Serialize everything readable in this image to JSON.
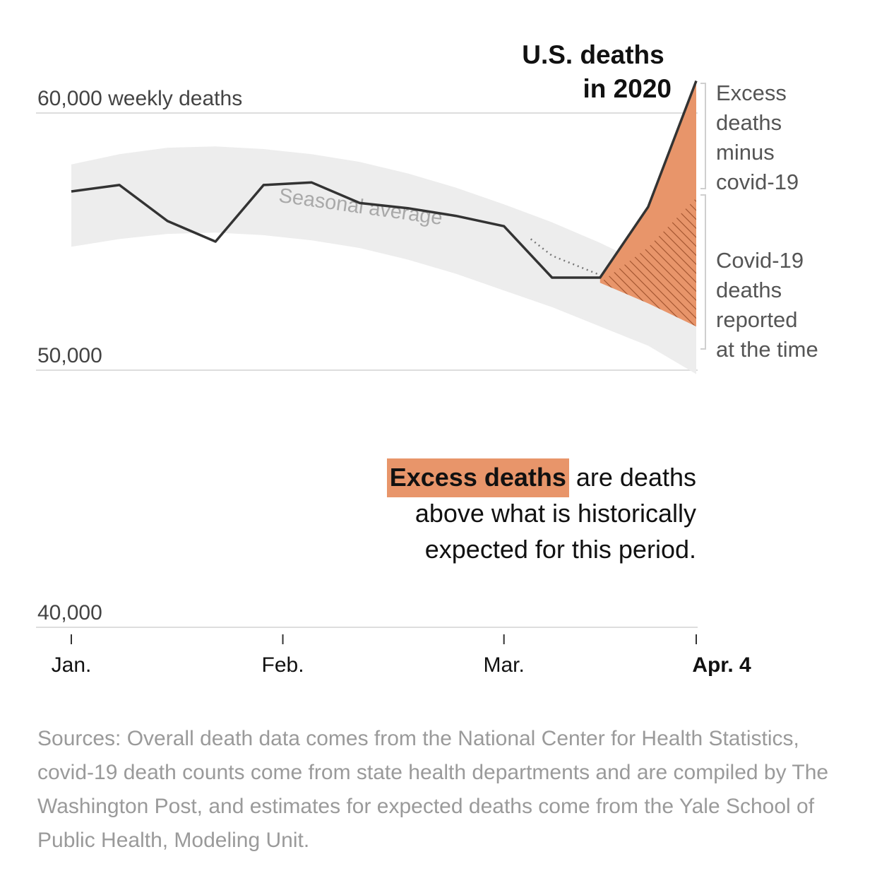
{
  "chart_data": {
    "type": "line",
    "title": "U.S. deaths in 2020",
    "title_lines": [
      "U.S. deaths",
      "in 2020"
    ],
    "ylabel": "weekly deaths",
    "ylim": [
      40000,
      60000
    ],
    "y_ticks": [
      {
        "value": 60000,
        "label": "60,000 weekly deaths"
      },
      {
        "value": 50000,
        "label": "50,000"
      },
      {
        "value": 40000,
        "label": "40,000"
      }
    ],
    "x_ticks": [
      {
        "week": 0,
        "label": "Jan.",
        "bold": false
      },
      {
        "week": 4.4,
        "label": "Feb.",
        "bold": false
      },
      {
        "week": 9.0,
        "label": "Mar.",
        "bold": false
      },
      {
        "week": 13.0,
        "label": "Apr. 4",
        "bold": true
      }
    ],
    "weeks": [
      0,
      1,
      2,
      3,
      4,
      5,
      6,
      7,
      8,
      9,
      10,
      11,
      12,
      13
    ],
    "series": [
      {
        "name": "U.S. deaths in 2020",
        "values": [
          56950,
          57200,
          55800,
          55000,
          57200,
          57300,
          56500,
          56300,
          56000,
          55600,
          53600,
          53600,
          56350,
          61250
        ]
      },
      {
        "name": "Seasonal average",
        "values": [
          56400,
          56700,
          56900,
          56950,
          56800,
          56600,
          56300,
          55900,
          55400,
          54800,
          54150,
          53400,
          52600,
          51700
        ]
      }
    ],
    "seasonal_band": {
      "upper": [
        58000,
        58400,
        58650,
        58700,
        58600,
        58400,
        58100,
        57650,
        57100,
        56450,
        55750,
        54950,
        54050,
        53000
      ],
      "lower": [
        54800,
        55100,
        55300,
        55350,
        55250,
        55050,
        54750,
        54300,
        53750,
        53100,
        52450,
        51700,
        50950,
        49850
      ]
    },
    "covid_reported_line": {
      "week": 13,
      "value": 56700
    },
    "annotations": {
      "seasonal_label": "Seasonal average",
      "excess_minus_covid": [
        "Excess",
        "deaths",
        "minus",
        "covid-19"
      ],
      "covid_reported": [
        "Covid-19",
        "deaths",
        "reported",
        "at the time"
      ]
    }
  },
  "explanation": {
    "highlight": "Excess deaths",
    "rest": " are deaths above what is historically expected for this period."
  },
  "sources": "Sources: Overall death data comes from the National Center for Health Statistics, covid-19 death counts come from state health departments and are compiled by The Washington Post, and estimates for expected deaths come from the Yale School of Public Health, Modeling Unit.",
  "colors": {
    "excess_fill": "#e8956a",
    "covid_hatch": "#a0522d",
    "line": "#333333",
    "band": "#ededed",
    "grid": "#dddddd",
    "highlight": "#e8956a"
  }
}
